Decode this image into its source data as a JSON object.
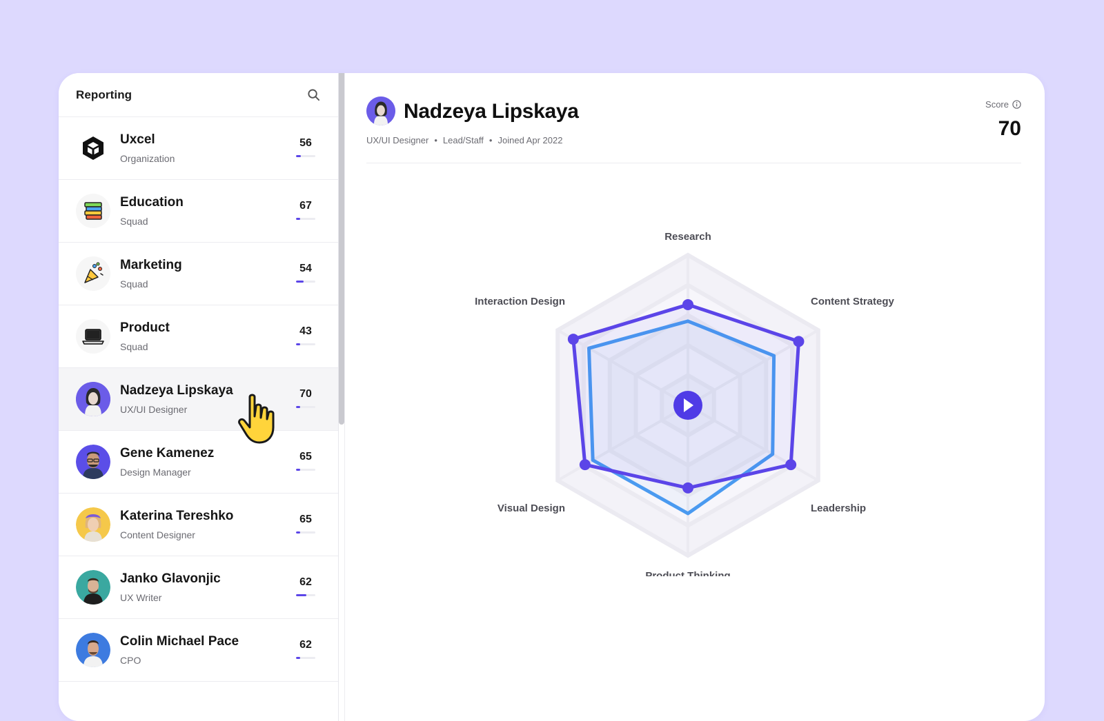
{
  "sidebar": {
    "title": "Reporting",
    "items": [
      {
        "name": "Uxcel",
        "sub": "Organization",
        "score": "56",
        "fill": 0.25,
        "icon": "uxcel-logo-icon",
        "active": false
      },
      {
        "name": "Education",
        "sub": "Squad",
        "score": "67",
        "fill": 0.2,
        "icon": "books-icon",
        "active": false
      },
      {
        "name": "Marketing",
        "sub": "Squad",
        "score": "54",
        "fill": 0.4,
        "icon": "party-popper-icon",
        "active": false
      },
      {
        "name": "Product",
        "sub": "Squad",
        "score": "43",
        "fill": 0.2,
        "icon": "laptop-icon",
        "active": false
      },
      {
        "name": "Nadzeya Lipskaya",
        "sub": "UX/UI Designer",
        "score": "70",
        "fill": 0.2,
        "icon": "avatar",
        "active": true
      },
      {
        "name": "Gene Kamenez",
        "sub": "Design Manager",
        "score": "65",
        "fill": 0.2,
        "icon": "avatar",
        "active": false
      },
      {
        "name": "Katerina Tereshko",
        "sub": "Content Designer",
        "score": "65",
        "fill": 0.2,
        "icon": "avatar",
        "active": false
      },
      {
        "name": "Janko Glavonjic",
        "sub": "UX Writer",
        "score": "62",
        "fill": 0.55,
        "icon": "avatar",
        "active": false
      },
      {
        "name": "Colin Michael Pace",
        "sub": "CPO",
        "score": "62",
        "fill": 0.2,
        "icon": "avatar",
        "active": false
      }
    ]
  },
  "profile": {
    "name": "Nadzeya Lipskaya",
    "role": "UX/UI Designer",
    "level": "Lead/Staff",
    "joined": "Joined Apr 2022",
    "score_label": "Score",
    "score": "70"
  },
  "radar": {
    "axes": [
      "Research",
      "Content Strategy",
      "Leadership",
      "Product Thinking",
      "Visual Design",
      "Interaction Design"
    ],
    "series": [
      {
        "values": [
          0.67,
          0.85,
          0.79,
          0.55,
          0.79,
          0.88
        ],
        "color": "#5b45e8"
      },
      {
        "values": [
          0.56,
          0.66,
          0.65,
          0.72,
          0.73,
          0.76
        ],
        "color": "#4a9af0"
      }
    ]
  },
  "colors": {
    "background": "#ddd9fe",
    "accent": "#5b45e8",
    "secondary": "#4a9af0"
  }
}
